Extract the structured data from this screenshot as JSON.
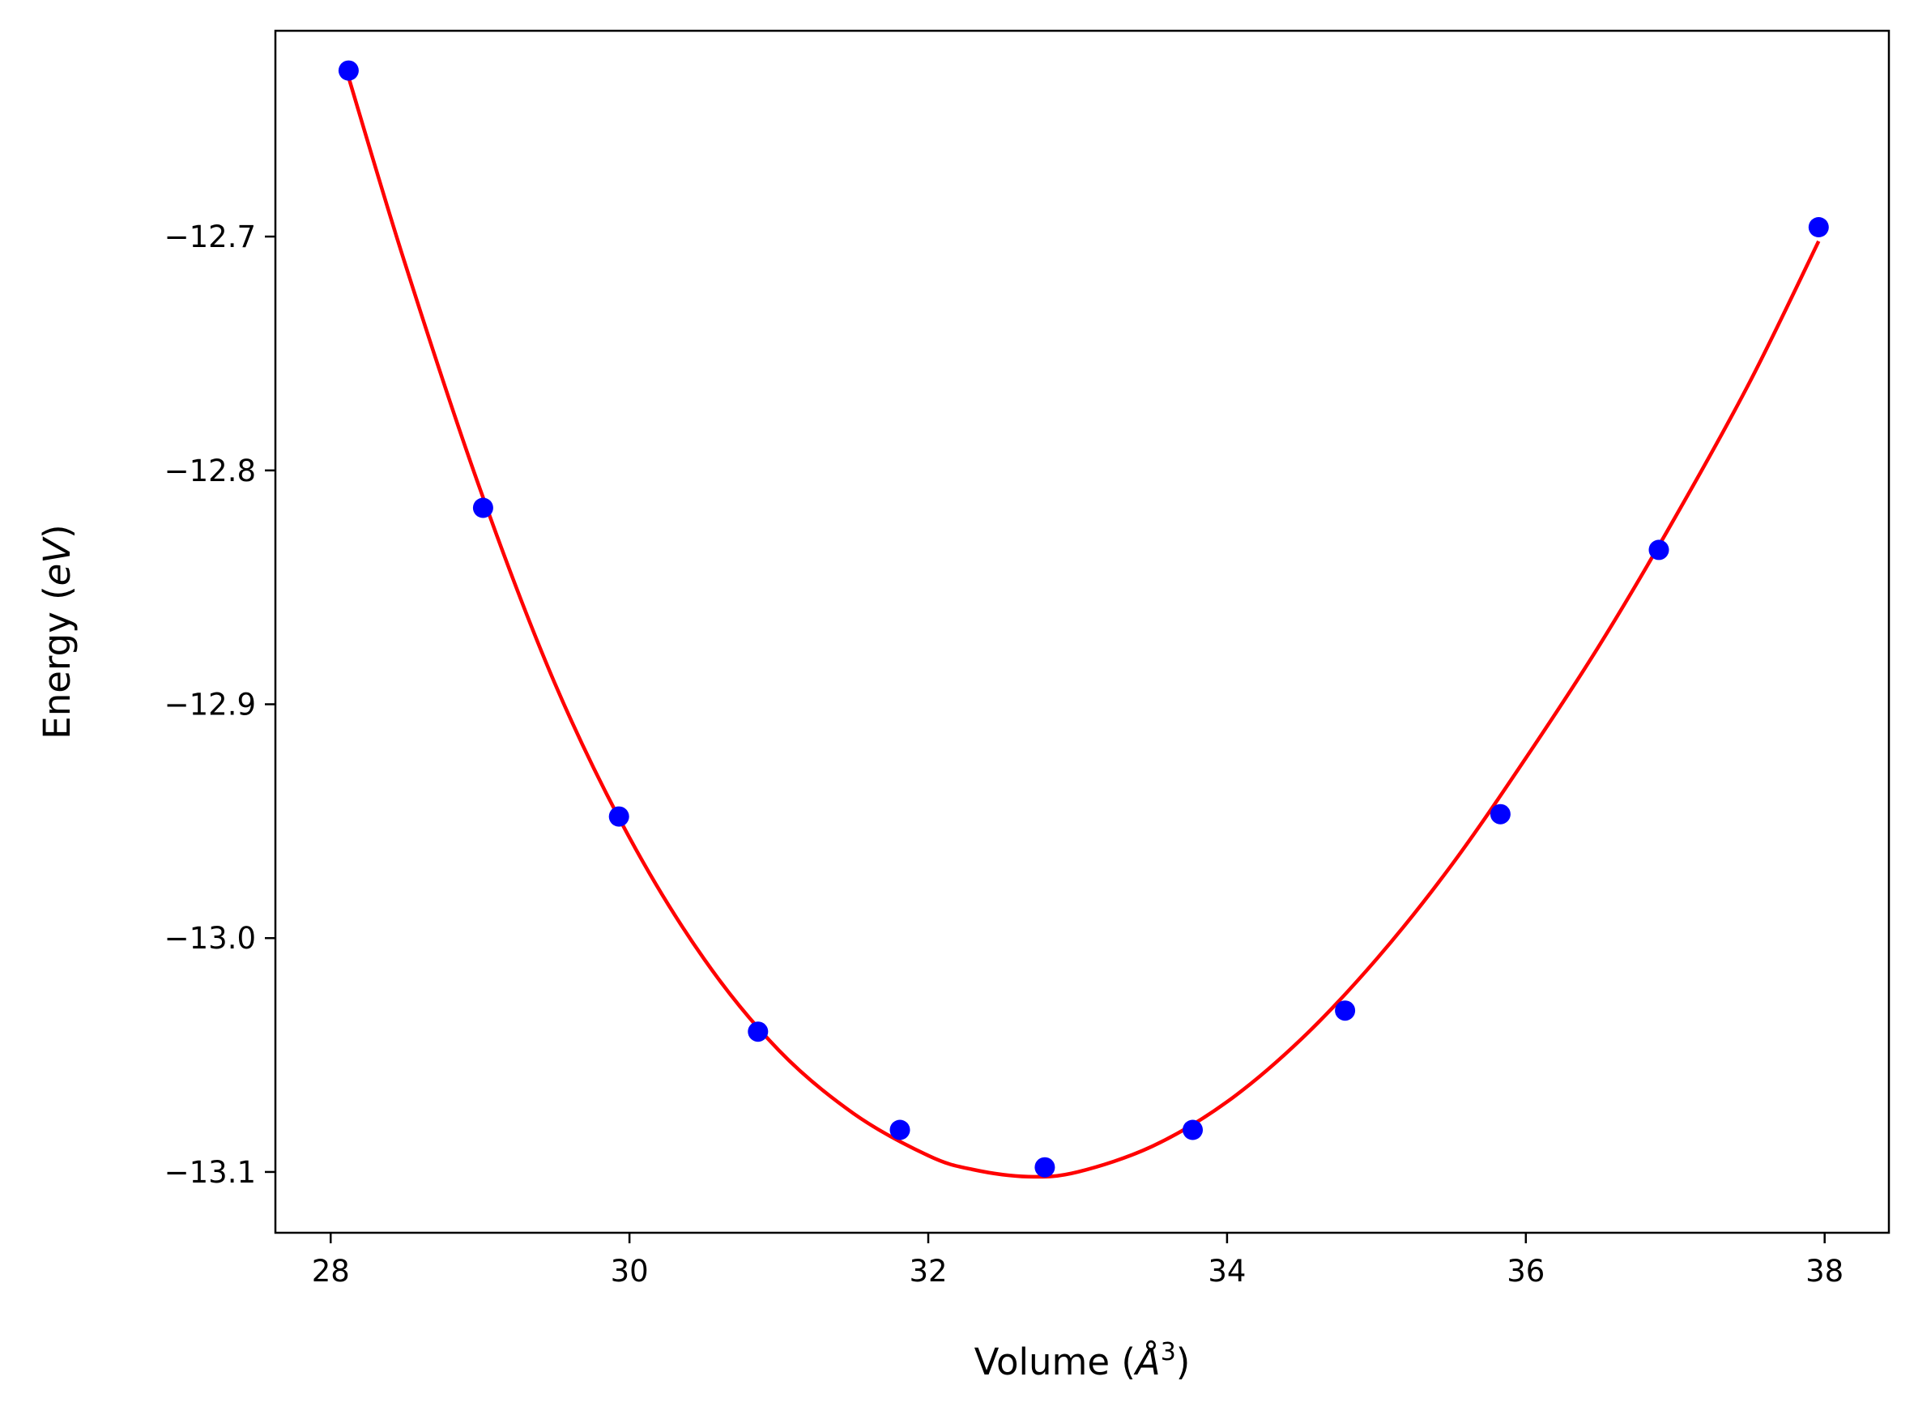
{
  "chart_data": {
    "type": "scatter",
    "title": "",
    "xlabel": {
      "text": "Volume (",
      "symbol": "Å",
      "sup": "3",
      "suffix": ")"
    },
    "ylabel": {
      "text": "Energy (",
      "unit": "eV",
      "suffix": ")"
    },
    "xlim": [
      27.63,
      38.43
    ],
    "ylim": [
      -13.126,
      -12.612
    ],
    "xticks": [
      {
        "value": 28,
        "label": "28"
      },
      {
        "value": 30,
        "label": "30"
      },
      {
        "value": 32,
        "label": "32"
      },
      {
        "value": 34,
        "label": "34"
      },
      {
        "value": 36,
        "label": "36"
      },
      {
        "value": 38,
        "label": "38"
      }
    ],
    "yticks": [
      {
        "value": -12.7,
        "label": "−12.7"
      },
      {
        "value": -12.8,
        "label": "−12.8"
      },
      {
        "value": -12.9,
        "label": "−12.9"
      },
      {
        "value": -13.0,
        "label": "−13.0"
      },
      {
        "value": -13.1,
        "label": "−13.1"
      }
    ],
    "grid": false,
    "colors": {
      "points": "#0000ff",
      "fit": "#ff0000",
      "axes": "#000000"
    },
    "series": [
      {
        "kind": "points",
        "x": [
          28.12,
          29.02,
          29.93,
          30.86,
          31.81,
          32.78,
          33.77,
          34.79,
          35.83,
          36.89,
          37.96
        ],
        "y": [
          -12.629,
          -12.816,
          -12.948,
          -13.04,
          -13.082,
          -13.098,
          -13.082,
          -13.031,
          -12.947,
          -12.834,
          -12.696
        ]
      },
      {
        "kind": "fit-curve",
        "x": [
          28.12,
          28.5,
          29.0,
          29.5,
          30.0,
          30.5,
          31.0,
          31.5,
          32.0,
          32.3,
          32.67,
          33.0,
          33.5,
          34.0,
          34.5,
          35.0,
          35.5,
          36.0,
          36.5,
          37.0,
          37.5,
          37.96
        ],
        "y": [
          -12.632,
          -12.712,
          -12.808,
          -12.891,
          -12.957,
          -13.009,
          -13.048,
          -13.075,
          -13.093,
          -13.099,
          -13.102,
          -13.1,
          -13.089,
          -13.07,
          -13.043,
          -13.009,
          -12.969,
          -12.923,
          -12.874,
          -12.82,
          -12.762,
          -12.702
        ]
      }
    ]
  }
}
